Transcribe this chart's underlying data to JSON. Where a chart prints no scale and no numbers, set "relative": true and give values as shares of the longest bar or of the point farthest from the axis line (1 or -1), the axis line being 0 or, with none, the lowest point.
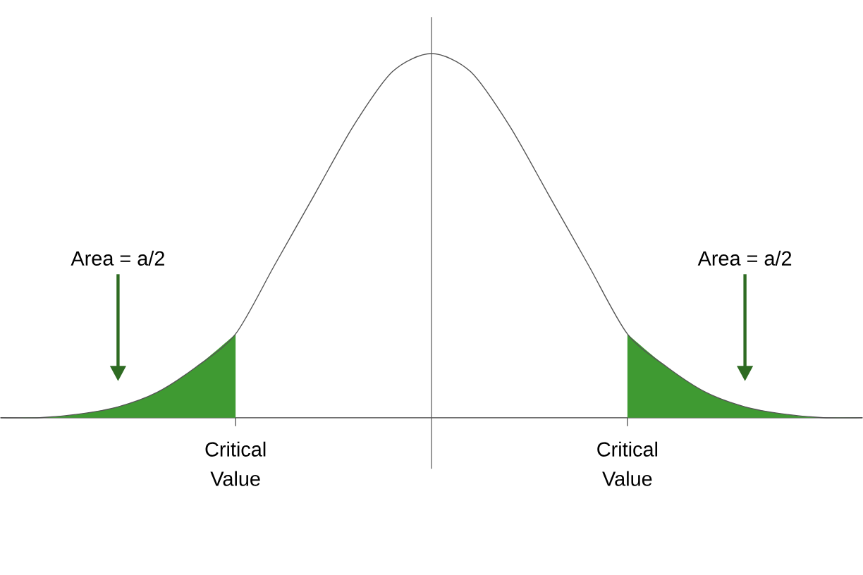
{
  "chart_data": {
    "type": "line",
    "relative": true,
    "marker": "none",
    "categories": [
      null,
      null,
      null,
      null,
      null,
      null,
      "Critical Value",
      null,
      null,
      null,
      null,
      null,
      null,
      null,
      null,
      null,
      "Critical Value",
      null,
      null,
      null,
      null,
      null,
      null
    ],
    "series": [
      {
        "color": "#555555",
        "values": [
          0.0,
          0.0,
          0.01,
          0.03,
          0.07,
          0.14,
          0.23,
          0.42,
          0.61,
          0.8,
          0.95,
          1.0,
          0.95,
          0.8,
          0.61,
          0.42,
          0.23,
          0.14,
          0.07,
          0.03,
          0.01,
          0.0,
          0.0
        ]
      },
      {
        "type": "area",
        "color": "#3f9a32",
        "values": [
          0.0,
          0.0,
          0.01,
          0.03,
          0.07,
          0.14,
          0.23,
          null,
          null,
          null,
          null,
          null,
          null,
          null,
          null,
          null,
          null,
          null,
          null,
          null,
          null,
          null,
          null
        ]
      },
      {
        "type": "area",
        "color": "#3f9a32",
        "values": [
          null,
          null,
          null,
          null,
          null,
          null,
          null,
          null,
          null,
          null,
          null,
          null,
          null,
          null,
          null,
          null,
          0.23,
          0.14,
          0.07,
          0.03,
          0.01,
          0.0,
          0.0
        ]
      }
    ],
    "annotations": [
      "Area = a/2",
      "Area = a/2"
    ]
  }
}
